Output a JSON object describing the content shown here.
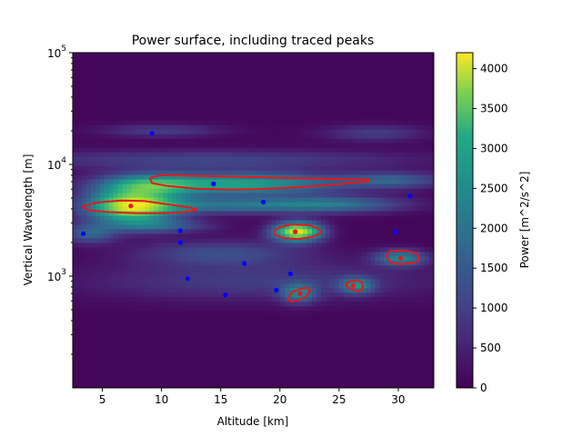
{
  "chart_data": {
    "type": "heatmap",
    "title": "Power surface, including traced peaks",
    "xlabel": "Altitude [km]",
    "ylabel": "Vertical Wavelength [m]",
    "xlim": [
      2.5,
      33
    ],
    "ylim": [
      100,
      100000
    ],
    "yscale": "log",
    "x_ticks": [
      5,
      10,
      15,
      20,
      25,
      30
    ],
    "y_ticks": [
      {
        "value": 1000,
        "base": "10",
        "exp": "3"
      },
      {
        "value": 10000,
        "base": "10",
        "exp": "4"
      },
      {
        "value": 100000,
        "base": "10",
        "exp": "5"
      }
    ],
    "colorbar": {
      "label": "Power [m^2/s^2]",
      "range": [
        0,
        4200
      ],
      "ticks": [
        0,
        500,
        1000,
        1500,
        2000,
        2500,
        3000,
        3500,
        4000
      ],
      "colormap": "viridis"
    },
    "colors": {
      "background": "#440154",
      "peak_contour": "#e41a1c",
      "traced_peak": "#e41a1c",
      "candidate_point": "#0000ff"
    },
    "power_features": [
      {
        "x": 7.5,
        "y": 4200,
        "sx": 2.6,
        "sy": 0.11,
        "power": 3600
      },
      {
        "x": 21.5,
        "y": 2500,
        "sx": 1.4,
        "sy": 0.06,
        "power": 4000
      },
      {
        "x": 17.0,
        "y": 6700,
        "sx": 5.5,
        "sy": 0.07,
        "power": 2300
      },
      {
        "x": 9.0,
        "y": 6600,
        "sx": 3.0,
        "sy": 0.07,
        "power": 1800
      },
      {
        "x": 29.5,
        "y": 7200,
        "sx": 3.0,
        "sy": 0.05,
        "power": 1200
      },
      {
        "x": 16.0,
        "y": 4300,
        "sx": 6.0,
        "sy": 0.05,
        "power": 1500
      },
      {
        "x": 25.0,
        "y": 4400,
        "sx": 4.0,
        "sy": 0.05,
        "power": 1200
      },
      {
        "x": 30.2,
        "y": 1450,
        "sx": 1.5,
        "sy": 0.05,
        "power": 1800
      },
      {
        "x": 26.5,
        "y": 820,
        "sx": 1.0,
        "sy": 0.05,
        "power": 1700
      },
      {
        "x": 21.6,
        "y": 700,
        "sx": 1.0,
        "sy": 0.06,
        "power": 1600
      },
      {
        "x": 4.0,
        "y": 2400,
        "sx": 1.5,
        "sy": 0.06,
        "power": 1200
      },
      {
        "x": 15.0,
        "y": 1600,
        "sx": 5.0,
        "sy": 0.08,
        "power": 900
      },
      {
        "x": 10.0,
        "y": 20000,
        "sx": 3.5,
        "sy": 0.04,
        "power": 700
      },
      {
        "x": 28.0,
        "y": 19000,
        "sx": 3.0,
        "sy": 0.05,
        "power": 700
      },
      {
        "x": 14.0,
        "y": 11000,
        "sx": 12.0,
        "sy": 0.06,
        "power": 800
      },
      {
        "x": 18.0,
        "y": 900,
        "sx": 10.0,
        "sy": 0.12,
        "power": 700
      },
      {
        "x": 10.0,
        "y": 2800,
        "sx": 3.0,
        "sy": 0.04,
        "power": 1000
      }
    ],
    "peak_contours": [
      [
        [
          3.3,
          4200
        ],
        [
          3.8,
          3900
        ],
        [
          5.5,
          3750
        ],
        [
          8.0,
          3650
        ],
        [
          10.5,
          3650
        ],
        [
          12.5,
          3800
        ],
        [
          13.0,
          3950
        ],
        [
          12.2,
          4150
        ],
        [
          10.5,
          4400
        ],
        [
          8.5,
          4700
        ],
        [
          6.5,
          4750
        ],
        [
          4.5,
          4550
        ],
        [
          3.3,
          4200
        ]
      ],
      [
        [
          9.0,
          7600
        ],
        [
          10.0,
          8000
        ],
        [
          13.0,
          7900
        ],
        [
          18.0,
          7700
        ],
        [
          22.0,
          7500
        ],
        [
          25.0,
          7400
        ],
        [
          27.5,
          7300
        ],
        [
          27.5,
          7050
        ],
        [
          25.0,
          6650
        ],
        [
          22.0,
          6300
        ],
        [
          19.0,
          6050
        ],
        [
          16.0,
          5950
        ],
        [
          13.0,
          6050
        ],
        [
          10.5,
          6400
        ],
        [
          9.2,
          6800
        ],
        [
          9.0,
          7600
        ]
      ],
      [
        [
          19.5,
          2500
        ],
        [
          20.0,
          2750
        ],
        [
          21.0,
          2900
        ],
        [
          22.5,
          2850
        ],
        [
          23.3,
          2650
        ],
        [
          23.5,
          2450
        ],
        [
          22.8,
          2250
        ],
        [
          21.5,
          2150
        ],
        [
          20.3,
          2200
        ],
        [
          19.6,
          2350
        ],
        [
          19.5,
          2500
        ]
      ],
      [
        [
          29.0,
          1520
        ],
        [
          29.3,
          1680
        ],
        [
          30.5,
          1700
        ],
        [
          31.6,
          1600
        ],
        [
          31.8,
          1420
        ],
        [
          31.4,
          1320
        ],
        [
          30.3,
          1280
        ],
        [
          29.5,
          1300
        ],
        [
          29.2,
          1380
        ],
        [
          29.0,
          1520
        ]
      ],
      [
        [
          25.5,
          830
        ],
        [
          25.9,
          900
        ],
        [
          26.6,
          920
        ],
        [
          27.0,
          860
        ],
        [
          27.0,
          760
        ],
        [
          26.6,
          730
        ],
        [
          26.0,
          770
        ],
        [
          25.5,
          830
        ]
      ],
      [
        [
          20.8,
          660
        ],
        [
          21.0,
          720
        ],
        [
          21.6,
          760
        ],
        [
          22.3,
          790
        ],
        [
          22.6,
          740
        ],
        [
          22.2,
          660
        ],
        [
          21.6,
          610
        ],
        [
          21.0,
          590
        ],
        [
          20.7,
          610
        ],
        [
          20.8,
          660
        ]
      ]
    ],
    "traced_peaks": [
      {
        "x": 7.4,
        "y": 4250
      },
      {
        "x": 21.3,
        "y": 2500
      },
      {
        "x": 30.2,
        "y": 1450
      },
      {
        "x": 26.2,
        "y": 820
      },
      {
        "x": 21.7,
        "y": 700
      }
    ],
    "candidate_points": [
      {
        "x": 9.2,
        "y": 19000
      },
      {
        "x": 14.4,
        "y": 6700
      },
      {
        "x": 18.6,
        "y": 4600
      },
      {
        "x": 31.0,
        "y": 5200
      },
      {
        "x": 3.4,
        "y": 2400
      },
      {
        "x": 11.6,
        "y": 2550
      },
      {
        "x": 11.6,
        "y": 2000
      },
      {
        "x": 29.8,
        "y": 2500
      },
      {
        "x": 17.0,
        "y": 1300
      },
      {
        "x": 20.9,
        "y": 1050
      },
      {
        "x": 12.2,
        "y": 950
      },
      {
        "x": 19.7,
        "y": 750
      },
      {
        "x": 15.4,
        "y": 680
      },
      {
        "x": 21.7,
        "y": 700
      }
    ]
  }
}
